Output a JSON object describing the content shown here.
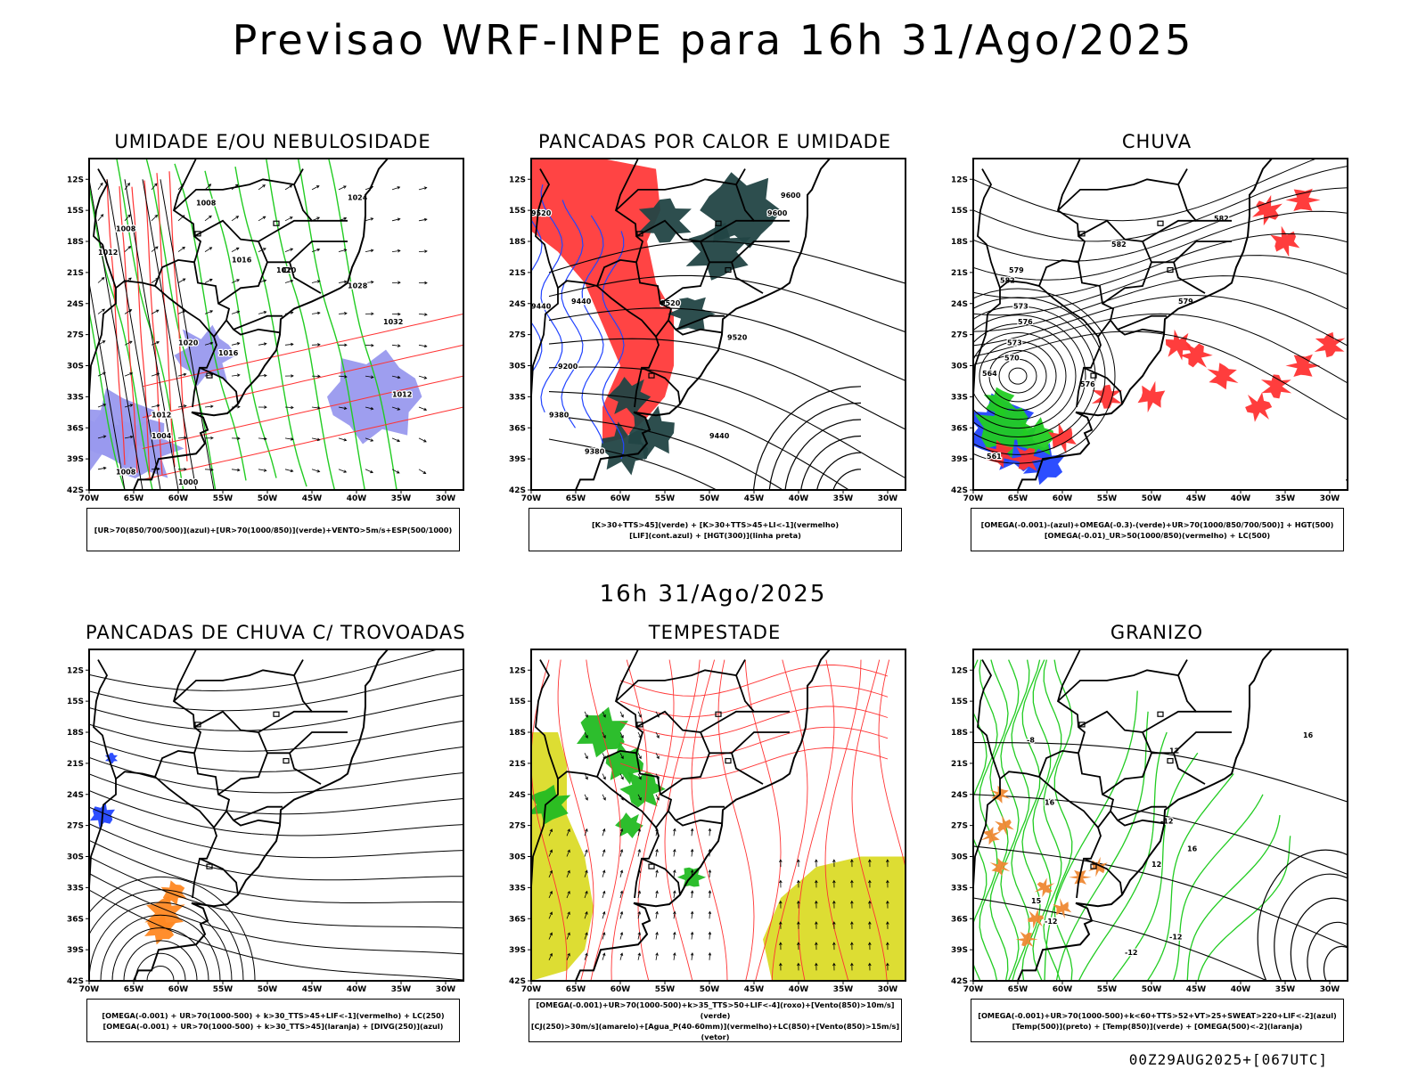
{
  "title": "Previsao WRF-INPE  para 16h 31/Ago/2025",
  "subtitle": "16h 31/Ago/2025",
  "run_stamp": "00Z29AUG2025+[067UTC]",
  "axes": {
    "lat_ticks": [
      "12S",
      "15S",
      "18S",
      "21S",
      "24S",
      "27S",
      "30S",
      "33S",
      "36S",
      "39S",
      "42S"
    ],
    "lon_ticks": [
      "70W",
      "65W",
      "60W",
      "55W",
      "50W",
      "45W",
      "40W",
      "35W",
      "30W"
    ]
  },
  "panels": [
    {
      "id": "umidade",
      "title": "UMIDADE E/OU NEBULOSIDADE",
      "legend": [
        "[UR>70(850/700/500)](azul)+[UR>70(1000/850)](verde)+VENTO>5m/s+ESP(500/1000)"
      ],
      "colors": {
        "fill": "#9999ee",
        "line1": "#22cc22",
        "line2": "#ff3333",
        "line3": "#000000"
      },
      "contour_labels": [
        "1008",
        "1008",
        "1012",
        "1016",
        "1020",
        "1024",
        "1028",
        "1032",
        "1012",
        "1016",
        "1020",
        "1012",
        "1004",
        "1008",
        "1000"
      ]
    },
    {
      "id": "pancadas_calor",
      "title": "PANCADAS POR CALOR E UMIDADE",
      "legend": [
        "[K>30+TTS>45](verde) + [K>30+TTS>45+LI<-1](vermelho)",
        "[LIF](cont.azul) + [HGT(300)](linha preta)"
      ],
      "colors": {
        "fill1": "#ff4444",
        "fill2": "#224444",
        "line1": "#2244ff",
        "line2": "#000000"
      },
      "contour_labels": [
        "9600",
        "9520",
        "9600",
        "9520",
        "9440",
        "9440",
        "9520",
        "9380",
        "9200",
        "9380",
        "9440"
      ]
    },
    {
      "id": "chuva",
      "title": "CHUVA",
      "legend": [
        "[OMEGA(-0.001)-(azul)+OMEGA(-0.3)-(verde)+UR>70(1000/850/700/500)] + HGT(500)",
        "[OMEGA(-0.01)_UR>50(1000/850)(vermelho) + LC(500)"
      ],
      "colors": {
        "fill1": "#ff3333",
        "fill2": "#22cc22",
        "fill3": "#2244ff",
        "line": "#000000"
      },
      "contour_labels": [
        "582",
        "582",
        "579",
        "576",
        "573",
        "582",
        "579",
        "576",
        "573",
        "570",
        "564",
        "561"
      ]
    },
    {
      "id": "pancadas_trovoadas",
      "title": "PANCADAS DE CHUVA C/ TROVOADAS",
      "legend": [
        "[OMEGA(-0.001) + UR>70(1000-500) + k>30_TTS>45+LIF<-1](vermelho) + LC(250)",
        "[OMEGA(-0.001) + UR>70(1000-500) + k>30_TTS>45](laranja) + [DIVG(250)](azul)"
      ],
      "colors": {
        "fill1": "#ff8822",
        "fill2": "#2244ff",
        "line": "#000000"
      }
    },
    {
      "id": "tempestade",
      "title": "TEMPESTADE",
      "legend": [
        "[OMEGA(-0.001)+UR>70(1000-500)+k>35_TTS>50+LIF<-4](roxo)+[Vento(850)>10m/s](verde)",
        "[CJ(250)>30m/s](amarelo)+[Agua_P(40-60mm)](vermelho)+LC(850)+[Vento(850)>15m/s](vetor)"
      ],
      "colors": {
        "fill1": "#dddd33",
        "fill2": "#22bb22",
        "line": "#ff3333",
        "vector": "#000000"
      }
    },
    {
      "id": "granizo",
      "title": "GRANIZO",
      "legend": [
        "[OMEGA(-0.001)+UR>70(1000-500)+k<60+TTS>52+VT>25+SWEAT>220+LIF<-2](azul)",
        "[Temp(500)](preto) + [Temp(850)](verde) + [OMEGA(500)<-2](laranja)"
      ],
      "colors": {
        "line1": "#22cc22",
        "line2": "#000000",
        "fill": "#ee8833"
      },
      "contour_labels": [
        "-12",
        "-12",
        "-12",
        "-12",
        "12",
        "16",
        "16",
        "-8",
        "15",
        "12",
        "16"
      ]
    }
  ]
}
